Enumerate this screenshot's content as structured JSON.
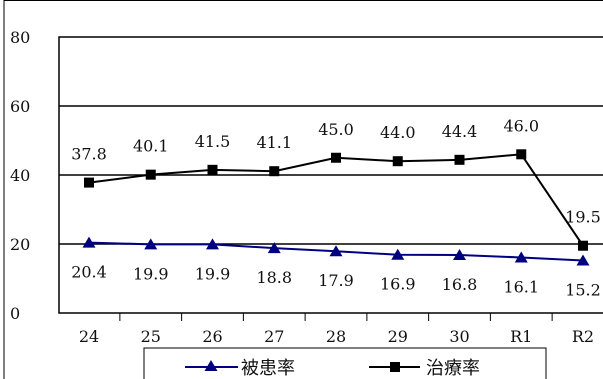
{
  "chart_data": {
    "type": "line",
    "categories": [
      "24",
      "25",
      "26",
      "27",
      "28",
      "29",
      "30",
      "R1",
      "R2"
    ],
    "series": [
      {
        "name": "被患率",
        "values": [
          20.4,
          19.9,
          19.9,
          18.8,
          17.9,
          16.9,
          16.8,
          16.1,
          15.2
        ],
        "labels": [
          "20.4",
          "19.9",
          "19.9",
          "18.8",
          "17.9",
          "16.9",
          "16.8",
          "16.1",
          "15.2"
        ],
        "color": "#000080",
        "marker": "triangle"
      },
      {
        "name": "治療率",
        "values": [
          37.8,
          40.1,
          41.5,
          41.1,
          45.0,
          44.0,
          44.4,
          46.0,
          19.5
        ],
        "labels": [
          "37.8",
          "40.1",
          "41.5",
          "41.1",
          "45.0",
          "44.0",
          "44.4",
          "46.0",
          "19.5"
        ],
        "color": "#000000",
        "marker": "square"
      }
    ],
    "y_ticks": [
      "0",
      "20",
      "40",
      "60",
      "80"
    ],
    "ylim": [
      0,
      80
    ],
    "grid": true,
    "legend": "bottom"
  }
}
